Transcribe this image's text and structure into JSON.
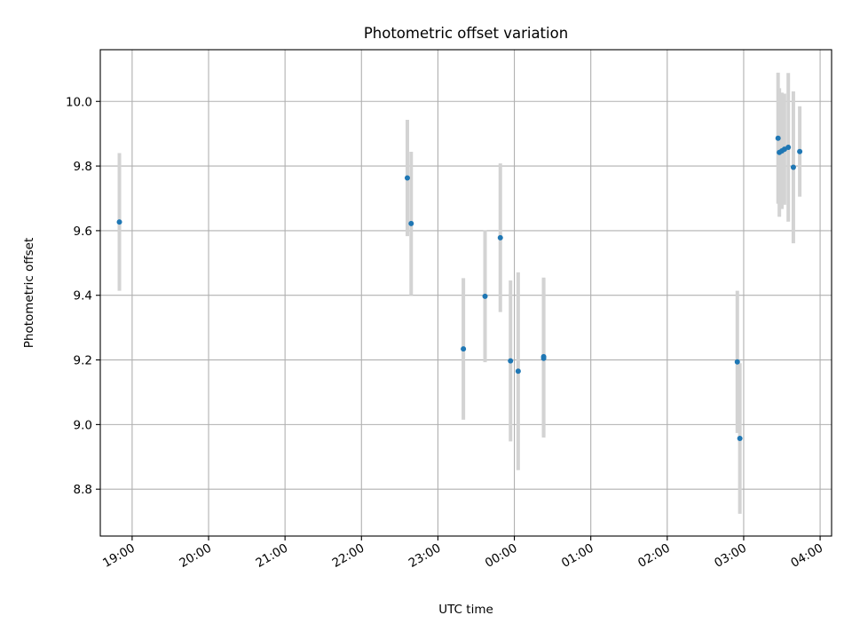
{
  "chart_data": {
    "type": "scatter",
    "title": "Photometric offset variation",
    "xlabel": "UTC time",
    "ylabel": "Photometric offset",
    "x_axis_type": "time",
    "xlim": [
      "18:35",
      "04:09"
    ],
    "ylim": [
      8.655,
      10.16
    ],
    "x_ticks": [
      "19:00",
      "20:00",
      "21:00",
      "22:00",
      "23:00",
      "00:00",
      "01:00",
      "02:00",
      "03:00",
      "04:00"
    ],
    "y_ticks": [
      8.8,
      9.0,
      9.2,
      9.4,
      9.6,
      9.8,
      10.0
    ],
    "grid": true,
    "error_bar_color": "#d3d3d3",
    "marker_color": "#1f77b4",
    "points": [
      {
        "time": "18:50",
        "y": 9.627,
        "err": 0.213
      },
      {
        "time": "22:36",
        "y": 9.763,
        "err": 0.18
      },
      {
        "time": "22:39",
        "y": 9.622,
        "err": 0.222
      },
      {
        "time": "23:20",
        "y": 9.234,
        "err": 0.219
      },
      {
        "time": "23:37",
        "y": 9.397,
        "err": 0.204
      },
      {
        "time": "23:49",
        "y": 9.578,
        "err": 0.23
      },
      {
        "time": "23:57",
        "y": 9.197,
        "err": 0.249
      },
      {
        "time": "00:03",
        "y": 9.165,
        "err": 0.306
      },
      {
        "time": "00:23",
        "y": 9.21,
        "err": 0.245
      },
      {
        "time": "00:23",
        "y": 9.205,
        "err": 0.245
      },
      {
        "time": "02:55",
        "y": 9.194,
        "err": 0.22
      },
      {
        "time": "02:57",
        "y": 8.957,
        "err": 0.233
      },
      {
        "time": "03:27",
        "y": 9.886,
        "err": 0.203
      },
      {
        "time": "03:28",
        "y": 9.842,
        "err": 0.199
      },
      {
        "time": "03:30",
        "y": 9.847,
        "err": 0.18
      },
      {
        "time": "03:32",
        "y": 9.852,
        "err": 0.172
      },
      {
        "time": "03:35",
        "y": 9.858,
        "err": 0.23
      },
      {
        "time": "03:39",
        "y": 9.796,
        "err": 0.235
      },
      {
        "time": "03:44",
        "y": 9.845,
        "err": 0.14
      }
    ]
  }
}
